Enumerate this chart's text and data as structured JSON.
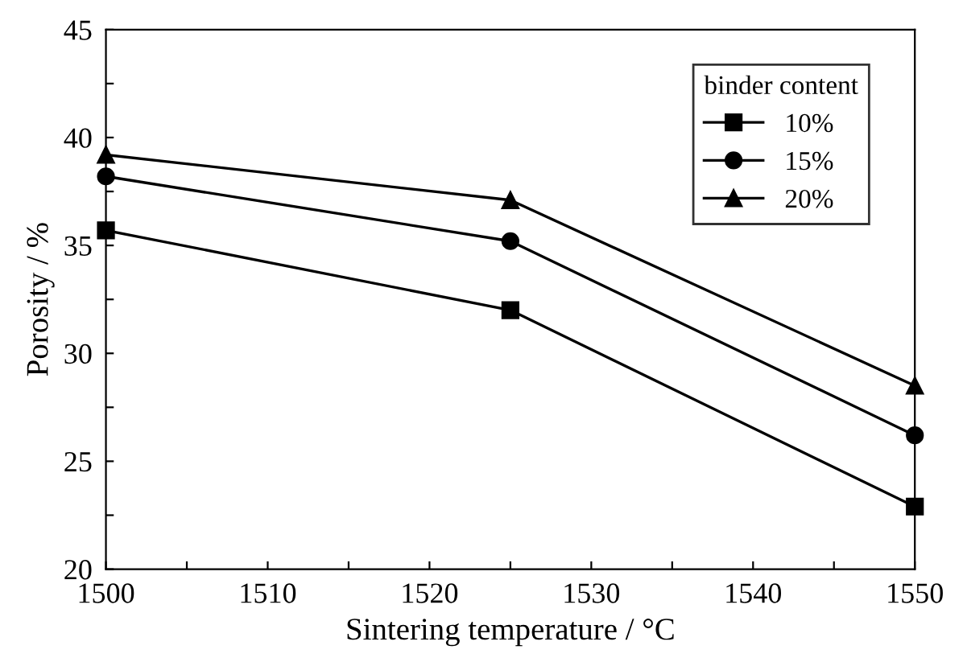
{
  "chart_data": {
    "type": "line",
    "xlabel": "Sintering temperature / °C",
    "ylabel": "Porosity / %",
    "legend_title": "binder content",
    "legend": "top right",
    "x": [
      1500,
      1525,
      1550
    ],
    "series": [
      {
        "name": "10%",
        "color": "#000000",
        "marker": "square",
        "values": [
          35.7,
          32.0,
          22.9
        ]
      },
      {
        "name": "15%",
        "color": "#000000",
        "marker": "circle",
        "values": [
          38.2,
          35.2,
          26.2
        ]
      },
      {
        "name": "20%",
        "color": "#000000",
        "marker": "triangle",
        "values": [
          39.2,
          37.1,
          28.5
        ]
      }
    ],
    "line_style": "solid",
    "xlim": [
      1500,
      1550
    ],
    "xticks": [
      1500,
      {
        "value": 1505,
        "label": null
      },
      1510,
      {
        "value": 1515,
        "label": null
      },
      1520,
      {
        "value": 1525,
        "label": null
      },
      1530,
      {
        "value": 1535,
        "label": null
      },
      1540,
      {
        "value": 1545,
        "label": null
      },
      1550
    ],
    "ylim": [
      20,
      45
    ],
    "yticks": [
      20,
      {
        "value": 22.5,
        "label": null
      },
      25,
      {
        "value": 27.5,
        "label": null
      },
      30,
      {
        "value": 32.5,
        "label": null
      },
      35,
      {
        "value": 37.5,
        "label": null
      },
      40,
      {
        "value": 42.5,
        "label": null
      },
      45
    ],
    "grid": false
  }
}
